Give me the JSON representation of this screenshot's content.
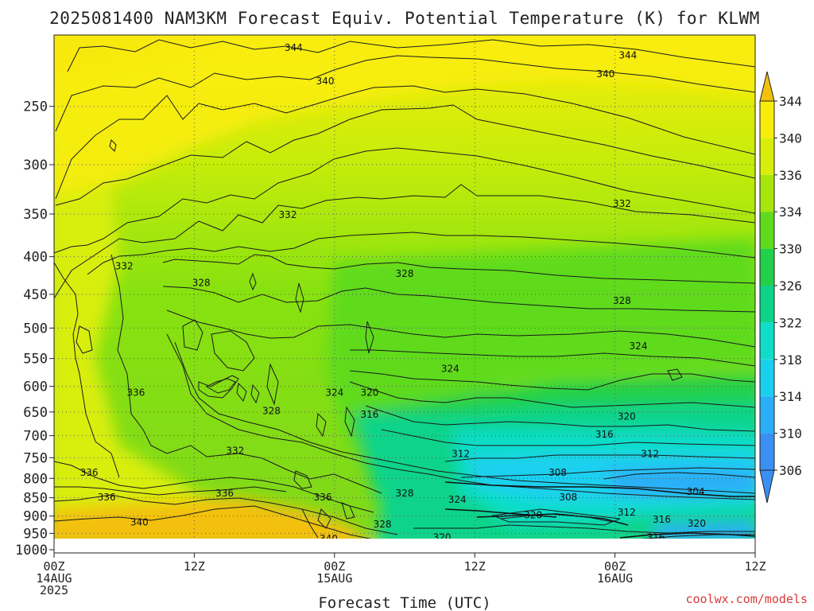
{
  "title": "2025081400 NAM3KM Forecast Equiv. Potential Temperature (K) for KLWM",
  "credit": "coolwx.com/models",
  "chart_data": {
    "type": "heatmap",
    "title": "2025081400 NAM3KM Forecast Equiv. Potential Temperature (K) for KLWM",
    "xlabel": "Forecast Time (UTC)",
    "ylabel": "",
    "x_ticks": [
      {
        "hour": 0,
        "label": "00Z",
        "sub": [
          "14AUG",
          "2025"
        ]
      },
      {
        "hour": 12,
        "label": "12Z",
        "sub": []
      },
      {
        "hour": 24,
        "label": "00Z",
        "sub": [
          "15AUG"
        ]
      },
      {
        "hour": 36,
        "label": "12Z",
        "sub": []
      },
      {
        "hour": 48,
        "label": "00Z",
        "sub": [
          "16AUG"
        ]
      },
      {
        "hour": 60,
        "label": "12Z",
        "sub": []
      }
    ],
    "xlim": [
      0,
      60
    ],
    "y_ticks": [
      250,
      300,
      350,
      400,
      450,
      500,
      550,
      600,
      650,
      700,
      750,
      800,
      850,
      900,
      950,
      1000
    ],
    "ylim": [
      1010,
      200
    ],
    "colorbar_levels": [
      344,
      340,
      336,
      334,
      330,
      326,
      322,
      318,
      314,
      310,
      306
    ],
    "colorbar_colors": [
      "#f3c10c",
      "#f8ed0a",
      "#d8ee0a",
      "#a6e60c",
      "#5fdb1c",
      "#22d04a",
      "#0ed48a",
      "#10ddc8",
      "#1ad0f0",
      "#2aaef8",
      "#3a90f2"
    ],
    "grid": true,
    "ground_color": "#a45a35",
    "contour_labels": [
      {
        "t": 20.5,
        "p": 208,
        "v": "344"
      },
      {
        "t": 49.1,
        "p": 213,
        "v": "344"
      },
      {
        "t": 23.2,
        "p": 231,
        "v": "340"
      },
      {
        "t": 47.2,
        "p": 226,
        "v": "340"
      },
      {
        "t": 20.0,
        "p": 351,
        "v": "332"
      },
      {
        "t": 48.6,
        "p": 339,
        "v": "332"
      },
      {
        "t": 6.0,
        "p": 412,
        "v": "332"
      },
      {
        "t": 12.6,
        "p": 434,
        "v": "328"
      },
      {
        "t": 30.0,
        "p": 422,
        "v": "328"
      },
      {
        "t": 48.6,
        "p": 459,
        "v": "328"
      },
      {
        "t": 33.9,
        "p": 568,
        "v": "324"
      },
      {
        "t": 50.0,
        "p": 529,
        "v": "324"
      },
      {
        "t": 7.0,
        "p": 612,
        "v": "336"
      },
      {
        "t": 24.0,
        "p": 612,
        "v": "324"
      },
      {
        "t": 27.0,
        "p": 612,
        "v": "320"
      },
      {
        "t": 18.6,
        "p": 648,
        "v": "328"
      },
      {
        "t": 27.0,
        "p": 655,
        "v": "316"
      },
      {
        "t": 49.0,
        "p": 659,
        "v": "320"
      },
      {
        "t": 47.1,
        "p": 697,
        "v": "316"
      },
      {
        "t": 15.5,
        "p": 734,
        "v": "332"
      },
      {
        "t": 34.8,
        "p": 741,
        "v": "312"
      },
      {
        "t": 51.0,
        "p": 741,
        "v": "312"
      },
      {
        "t": 3.0,
        "p": 786,
        "v": "336"
      },
      {
        "t": 43.1,
        "p": 786,
        "v": "308"
      },
      {
        "t": 4.5,
        "p": 849,
        "v": "336"
      },
      {
        "t": 14.6,
        "p": 838,
        "v": "336"
      },
      {
        "t": 23.0,
        "p": 849,
        "v": "336"
      },
      {
        "t": 30.0,
        "p": 838,
        "v": "328"
      },
      {
        "t": 34.5,
        "p": 855,
        "v": "324"
      },
      {
        "t": 44.0,
        "p": 849,
        "v": "308"
      },
      {
        "t": 54.9,
        "p": 834,
        "v": "304"
      },
      {
        "t": 7.3,
        "p": 918,
        "v": "340"
      },
      {
        "t": 28.1,
        "p": 924,
        "v": "328"
      },
      {
        "t": 41.0,
        "p": 897,
        "v": "320"
      },
      {
        "t": 49.0,
        "p": 890,
        "v": "312"
      },
      {
        "t": 52.0,
        "p": 910,
        "v": "316"
      },
      {
        "t": 55.0,
        "p": 921,
        "v": "320"
      },
      {
        "t": 23.5,
        "p": 966,
        "v": "340"
      },
      {
        "t": 33.2,
        "p": 962,
        "v": "320"
      },
      {
        "t": 51.5,
        "p": 962,
        "v": "316"
      },
      {
        "t": 49.1,
        "p": 1006,
        "v": "312"
      },
      {
        "t": 52.8,
        "p": 1000,
        "v": "308"
      }
    ]
  }
}
